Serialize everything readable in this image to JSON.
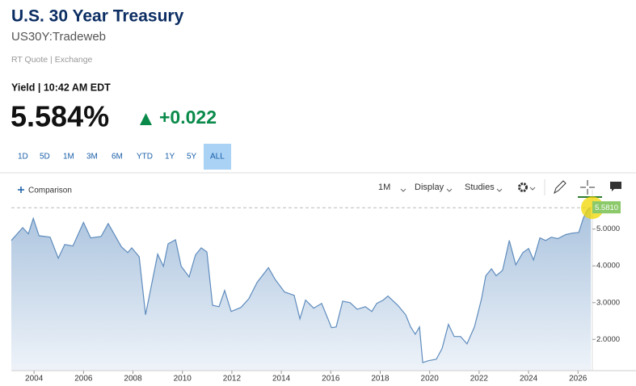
{
  "header": {
    "title": "U.S. 30 Year Treasury",
    "symbol": "US30Y:Tradeweb",
    "source": "RT Quote | Exchange"
  },
  "quote": {
    "label": "Yield | 10:42 AM EDT",
    "value": "5.584%",
    "change": "+0.022"
  },
  "ranges": [
    "1D",
    "5D",
    "1M",
    "3M",
    "6M",
    "YTD",
    "1Y",
    "5Y",
    "ALL"
  ],
  "selected_range": "ALL",
  "toolbar": {
    "comparison": "Comparison",
    "interval": "1M",
    "display": "Display",
    "studies": "Studies"
  },
  "chart_data": {
    "type": "area",
    "color": "#5f8cbd",
    "x": [
      2003.08,
      2003.54,
      2003.77,
      2003.97,
      2004.2,
      2004.65,
      2004.98,
      2005.24,
      2005.57,
      2006.0,
      2006.29,
      2006.71,
      2007.0,
      2007.53,
      2007.79,
      2007.95,
      2008.25,
      2008.51,
      2008.77,
      2009.0,
      2009.23,
      2009.42,
      2009.72,
      2009.95,
      2010.27,
      2010.53,
      2010.76,
      2010.99,
      2011.22,
      2011.48,
      2011.71,
      2011.97,
      2012.37,
      2012.69,
      2013.02,
      2013.48,
      2013.74,
      2014.13,
      2014.52,
      2014.75,
      2014.98,
      2015.31,
      2015.63,
      2016.03,
      2016.22,
      2016.48,
      2016.78,
      2017.07,
      2017.4,
      2017.66,
      2017.86,
      2018.12,
      2018.31,
      2018.71,
      2019.03,
      2019.23,
      2019.42,
      2019.59,
      2019.72,
      2019.95,
      2020.27,
      2020.5,
      2020.76,
      2020.99,
      2021.25,
      2021.51,
      2021.81,
      2022.1,
      2022.27,
      2022.5,
      2022.69,
      2022.95,
      2023.22,
      2023.48,
      2023.77,
      2024.0,
      2024.2,
      2024.46,
      2024.69,
      2024.92,
      2025.18,
      2025.5,
      2025.77,
      2026.03,
      2026.22,
      2026.39,
      2026.52
    ],
    "values": [
      4.69,
      5.04,
      4.87,
      5.29,
      4.82,
      4.78,
      4.21,
      4.58,
      4.54,
      5.18,
      4.76,
      4.8,
      5.15,
      4.52,
      4.36,
      4.49,
      4.25,
      2.67,
      3.55,
      4.32,
      3.99,
      4.6,
      4.71,
      3.99,
      3.7,
      4.3,
      4.49,
      4.38,
      2.93,
      2.89,
      3.33,
      2.76,
      2.87,
      3.11,
      3.55,
      3.95,
      3.64,
      3.29,
      3.2,
      2.56,
      3.07,
      2.85,
      2.98,
      2.32,
      2.34,
      3.04,
      3.0,
      2.82,
      2.89,
      2.76,
      2.98,
      3.07,
      3.18,
      2.93,
      2.67,
      2.34,
      2.14,
      2.34,
      1.37,
      1.42,
      1.46,
      1.75,
      2.41,
      2.08,
      2.08,
      1.88,
      2.34,
      3.11,
      3.73,
      3.92,
      3.73,
      3.88,
      4.69,
      4.03,
      4.36,
      4.47,
      4.16,
      4.76,
      4.69,
      4.78,
      4.74,
      4.85,
      4.89,
      4.91,
      5.31,
      5.53,
      5.58
    ],
    "xlim": [
      2003.08,
      2026.58
    ],
    "xticks": [
      2004,
      2006,
      2008,
      2010,
      2012,
      2014,
      2016,
      2018,
      2020,
      2022,
      2024,
      2026
    ],
    "ylim": [
      1.15,
      5.85
    ],
    "yticks": [
      {
        "value": 2,
        "label": "2.0000"
      },
      {
        "value": 3,
        "label": "3.0000"
      },
      {
        "value": 4,
        "label": "4.0000"
      },
      {
        "value": 5,
        "label": "5.0000"
      }
    ],
    "last_value": {
      "value": 5.581,
      "label": "5.5810"
    }
  }
}
